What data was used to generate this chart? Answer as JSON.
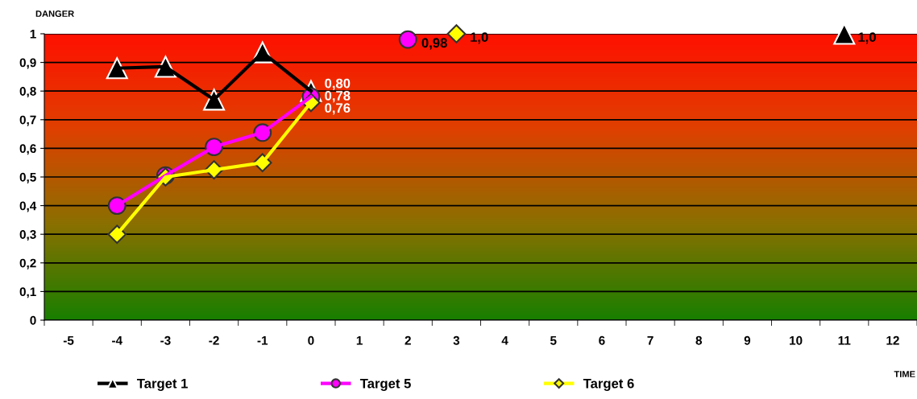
{
  "chart_data": {
    "type": "line",
    "xlabel": "TIME",
    "ylabel": "DANGER",
    "categories": [
      "-5",
      "-4",
      "-3",
      "-2",
      "-1",
      "0",
      "1",
      "2",
      "3",
      "4",
      "5",
      "6",
      "7",
      "8",
      "9",
      "10",
      "11",
      "12"
    ],
    "series": [
      {
        "name": "Target 1",
        "color": "#000000",
        "marker": "triangle",
        "values": [
          null,
          0.88,
          0.885,
          0.77,
          0.935,
          0.8,
          null,
          null,
          null,
          null,
          null,
          null,
          null,
          null,
          null,
          null,
          1.0,
          null
        ],
        "value_labels": [
          null,
          null,
          null,
          null,
          null,
          "0,80",
          null,
          null,
          null,
          null,
          null,
          null,
          null,
          null,
          null,
          null,
          "1,0",
          null
        ]
      },
      {
        "name": "Target 5",
        "color": "#ff00ff",
        "marker": "circle",
        "values": [
          null,
          0.4,
          0.505,
          0.605,
          0.655,
          0.78,
          null,
          0.98,
          null,
          null,
          null,
          null,
          null,
          null,
          null,
          null,
          null,
          null
        ],
        "value_labels": [
          null,
          null,
          null,
          null,
          null,
          "0,78",
          null,
          "0,98",
          null,
          null,
          null,
          null,
          null,
          null,
          null,
          null,
          null,
          null
        ]
      },
      {
        "name": "Target 6",
        "color": "#ffff00",
        "marker": "diamond",
        "values": [
          null,
          0.3,
          0.5,
          0.525,
          0.55,
          0.76,
          null,
          null,
          1.0,
          null,
          null,
          null,
          null,
          null,
          null,
          null,
          null,
          null
        ],
        "value_labels": [
          null,
          null,
          null,
          null,
          null,
          "0,76",
          null,
          null,
          "1,0",
          null,
          null,
          null,
          null,
          null,
          null,
          null,
          null,
          null
        ]
      }
    ],
    "ylim": [
      0,
      1
    ],
    "yticks": [
      {
        "value": 0,
        "label": "0"
      },
      {
        "value": 0.1,
        "label": "0,1"
      },
      {
        "value": 0.2,
        "label": "0,2"
      },
      {
        "value": 0.3,
        "label": "0,3"
      },
      {
        "value": 0.4,
        "label": "0,4"
      },
      {
        "value": 0.5,
        "label": "0,5"
      },
      {
        "value": 0.6,
        "label": "0,6"
      },
      {
        "value": 0.7,
        "label": "0,7"
      },
      {
        "value": 0.8,
        "label": "0,8"
      },
      {
        "value": 0.9,
        "label": "0,9"
      },
      {
        "value": 1,
        "label": "1"
      }
    ],
    "grid": "y",
    "legend": "bottom"
  }
}
